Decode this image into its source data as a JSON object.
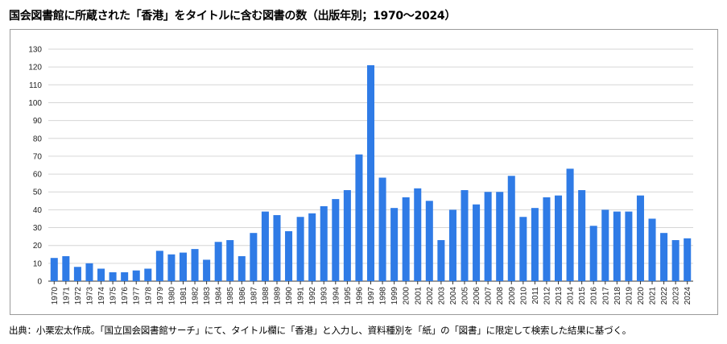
{
  "title": "国会図書館に所蔵された「香港」をタイトルに含む図書の数（出版年別；1970〜2024）",
  "source": "出典：小栗宏太作成。「国立国会図書館サーチ」にて、タイトル欄に「香港」と入力し、資料種別を「紙」の「図書」に限定して検索した結果に基づく。",
  "chart_data": {
    "type": "bar",
    "title": "国会図書館に所蔵された「香港」をタイトルに含む図書の数（出版年別；1970〜2024）",
    "xlabel": "",
    "ylabel": "",
    "ylim": [
      0,
      130
    ],
    "yticks": [
      0,
      10,
      20,
      30,
      40,
      50,
      60,
      70,
      80,
      90,
      100,
      110,
      120,
      130
    ],
    "grid": true,
    "legend": "none",
    "bar_color": "#2f7be6",
    "categories": [
      "1970",
      "1971",
      "1972",
      "1973",
      "1974",
      "1975",
      "1976",
      "1977",
      "1978",
      "1979",
      "1980",
      "1981",
      "1982",
      "1983",
      "1984",
      "1985",
      "1986",
      "1987",
      "1988",
      "1989",
      "1990",
      "1991",
      "1992",
      "1993",
      "1994",
      "1995",
      "1996",
      "1997",
      "1998",
      "1999",
      "2000",
      "2001",
      "2002",
      "2003",
      "2004",
      "2005",
      "2006",
      "2007",
      "2008",
      "2009",
      "2010",
      "2011",
      "2012",
      "2013",
      "2014",
      "2015",
      "2016",
      "2017",
      "2018",
      "2019",
      "2020",
      "2021",
      "2022",
      "2023",
      "2024"
    ],
    "values": [
      13,
      14,
      8,
      10,
      7,
      5,
      5,
      6,
      7,
      17,
      15,
      16,
      18,
      12,
      22,
      23,
      14,
      27,
      39,
      37,
      28,
      36,
      38,
      42,
      46,
      51,
      71,
      121,
      58,
      41,
      47,
      52,
      45,
      23,
      40,
      51,
      43,
      50,
      50,
      59,
      36,
      41,
      47,
      48,
      63,
      51,
      31,
      40,
      39,
      39,
      48,
      35,
      27,
      23,
      24
    ]
  }
}
